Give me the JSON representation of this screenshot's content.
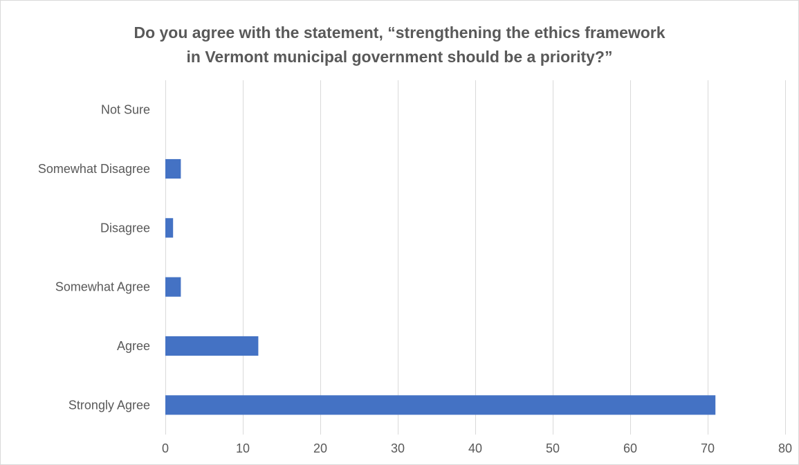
{
  "chart_data": {
    "type": "bar",
    "orientation": "horizontal",
    "title_lines": [
      "Do you agree with the statement, “strengthening the ethics framework",
      "in Vermont municipal government should be a priority?”"
    ],
    "categories": [
      "Not Sure",
      "Somewhat Disagree",
      "Disagree",
      "Somewhat Agree",
      "Agree",
      "Strongly Agree"
    ],
    "values": [
      0,
      2,
      1,
      2,
      12,
      71
    ],
    "xlim": [
      0,
      80
    ],
    "xticks": [
      0,
      10,
      20,
      30,
      40,
      50,
      60,
      70,
      80
    ],
    "grid": true,
    "legend": "none",
    "bar_color": "#4472C4",
    "gridline_color": "#d9d9d9",
    "text_color": "#595959"
  }
}
